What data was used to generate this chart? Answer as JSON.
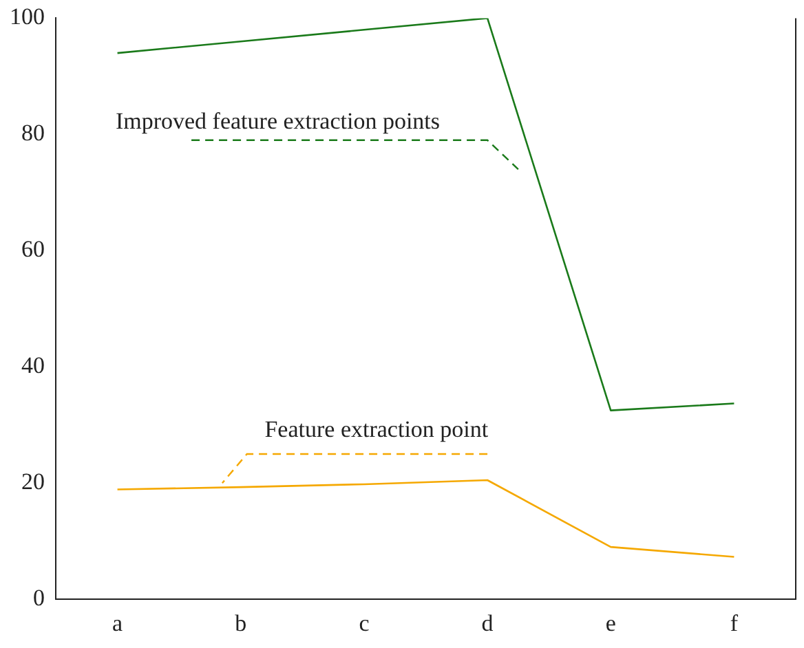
{
  "chart_data": {
    "type": "line",
    "categories": [
      "a",
      "b",
      "c",
      "d",
      "e",
      "f"
    ],
    "series": [
      {
        "name": "Improved feature extraction points",
        "color": "#1a7a1a",
        "values": [
          94,
          96,
          98,
          100,
          32.5,
          33.7
        ]
      },
      {
        "name": "Feature extraction point",
        "color": "#f5a800",
        "values": [
          18.9,
          19.3,
          19.8,
          20.5,
          9,
          7.3
        ]
      }
    ],
    "ylim": [
      0,
      100
    ],
    "yticks": [
      0,
      20,
      40,
      60,
      80,
      100
    ],
    "grid": false,
    "legend": false,
    "marker": "none",
    "line_style": "solid"
  }
}
